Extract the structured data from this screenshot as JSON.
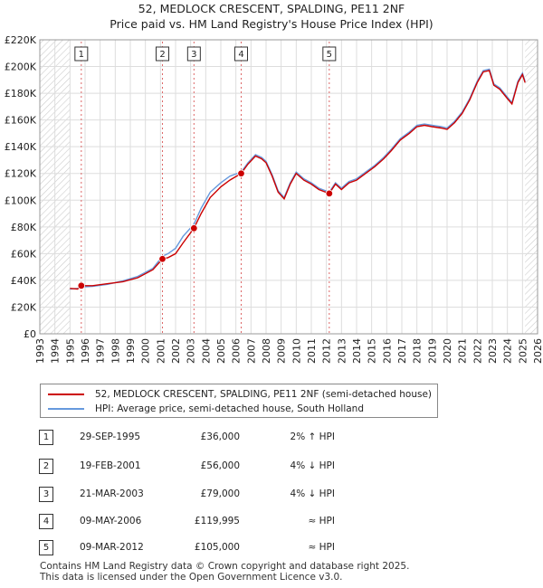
{
  "title_line1": "52, MEDLOCK CRESCENT, SPALDING, PE11 2NF",
  "title_line2": "Price paid vs. HM Land Registry's House Price Index (HPI)",
  "colors": {
    "property": "#cc0000",
    "hpi": "#6699dd",
    "marker_line": "#dd6666",
    "hatch": "#cccccc"
  },
  "legend": {
    "property_label": "52, MEDLOCK CRESCENT, SPALDING, PE11 2NF (semi-detached house)",
    "hpi_label": "HPI: Average price, semi-detached house, South Holland"
  },
  "sales": [
    {
      "num": "1",
      "date": "29-SEP-1995",
      "price": "£36,000",
      "hpi": "2% ↑ HPI"
    },
    {
      "num": "2",
      "date": "19-FEB-2001",
      "price": "£56,000",
      "hpi": "4% ↓ HPI"
    },
    {
      "num": "3",
      "date": "21-MAR-2003",
      "price": "£79,000",
      "hpi": "4% ↓ HPI"
    },
    {
      "num": "4",
      "date": "09-MAY-2006",
      "price": "£119,995",
      "hpi": "≈ HPI"
    },
    {
      "num": "5",
      "date": "09-MAR-2012",
      "price": "£105,000",
      "hpi": "≈ HPI"
    }
  ],
  "footer_line1": "Contains HM Land Registry data © Crown copyright and database right 2025.",
  "footer_line2": "This data is licensed under the Open Government Licence v3.0.",
  "chart_data": {
    "type": "line",
    "title": "52, MEDLOCK CRESCENT, SPALDING, PE11 2NF",
    "subtitle": "Price paid vs. HM Land Registry's House Price Index (HPI)",
    "xlim": [
      1993,
      2026
    ],
    "ylim": [
      0,
      220000
    ],
    "x_ticks": [
      1993,
      1994,
      1995,
      1996,
      1997,
      1998,
      1999,
      2000,
      2001,
      2002,
      2003,
      2004,
      2005,
      2006,
      2007,
      2008,
      2009,
      2010,
      2011,
      2012,
      2013,
      2014,
      2015,
      2016,
      2017,
      2018,
      2019,
      2020,
      2021,
      2022,
      2023,
      2024,
      2025,
      2026
    ],
    "y_ticks": [
      {
        "value": 0,
        "label": "£0"
      },
      {
        "value": 20000,
        "label": "£20K"
      },
      {
        "value": 40000,
        "label": "£40K"
      },
      {
        "value": 60000,
        "label": "£60K"
      },
      {
        "value": 80000,
        "label": "£80K"
      },
      {
        "value": 100000,
        "label": "£100K"
      },
      {
        "value": 120000,
        "label": "£120K"
      },
      {
        "value": 140000,
        "label": "£140K"
      },
      {
        "value": 160000,
        "label": "£160K"
      },
      {
        "value": 180000,
        "label": "£180K"
      },
      {
        "value": 200000,
        "label": "£200K"
      },
      {
        "value": 220000,
        "label": "£220K"
      }
    ],
    "grid": true,
    "data_start": 1995.0,
    "data_end": 2025.17,
    "sale_markers": [
      {
        "label": "1",
        "x": 1995.75,
        "y": 36000
      },
      {
        "label": "2",
        "x": 2001.13,
        "y": 56000
      },
      {
        "label": "3",
        "x": 2003.22,
        "y": 79000
      },
      {
        "label": "4",
        "x": 2006.35,
        "y": 119995
      },
      {
        "label": "5",
        "x": 2012.19,
        "y": 105000
      }
    ],
    "series": [
      {
        "name": "52, MEDLOCK CRESCENT, SPALDING, PE11 2NF (semi-detached house)",
        "points": [
          [
            1995.0,
            34000
          ],
          [
            1995.5,
            33500
          ],
          [
            1995.75,
            36000
          ],
          [
            1996.5,
            36000
          ],
          [
            1997.5,
            37500
          ],
          [
            1998.5,
            39000
          ],
          [
            1999.5,
            42000
          ],
          [
            2000.5,
            48000
          ],
          [
            2001.13,
            56000
          ],
          [
            2001.5,
            57000
          ],
          [
            2002.0,
            60000
          ],
          [
            2002.5,
            68000
          ],
          [
            2003.22,
            79000
          ],
          [
            2003.7,
            90000
          ],
          [
            2004.3,
            102000
          ],
          [
            2005.0,
            110000
          ],
          [
            2005.6,
            115000
          ],
          [
            2006.35,
            119995
          ],
          [
            2006.8,
            127000
          ],
          [
            2007.3,
            133000
          ],
          [
            2007.7,
            131000
          ],
          [
            2008.0,
            128000
          ],
          [
            2008.4,
            118000
          ],
          [
            2008.8,
            106000
          ],
          [
            2009.2,
            101000
          ],
          [
            2009.6,
            112000
          ],
          [
            2010.0,
            120000
          ],
          [
            2010.5,
            115000
          ],
          [
            2011.0,
            112000
          ],
          [
            2011.5,
            108000
          ],
          [
            2012.19,
            105000
          ],
          [
            2012.6,
            112000
          ],
          [
            2013.0,
            108000
          ],
          [
            2013.5,
            113000
          ],
          [
            2014.0,
            115000
          ],
          [
            2014.6,
            120000
          ],
          [
            2015.2,
            125000
          ],
          [
            2015.8,
            131000
          ],
          [
            2016.3,
            137000
          ],
          [
            2016.9,
            145000
          ],
          [
            2017.5,
            150000
          ],
          [
            2018.0,
            155000
          ],
          [
            2018.5,
            156000
          ],
          [
            2019.0,
            155000
          ],
          [
            2019.6,
            154000
          ],
          [
            2020.0,
            153000
          ],
          [
            2020.5,
            158000
          ],
          [
            2021.0,
            165000
          ],
          [
            2021.5,
            175000
          ],
          [
            2022.0,
            188000
          ],
          [
            2022.4,
            196000
          ],
          [
            2022.8,
            197000
          ],
          [
            2023.1,
            186000
          ],
          [
            2023.5,
            183000
          ],
          [
            2024.0,
            176000
          ],
          [
            2024.3,
            172000
          ],
          [
            2024.7,
            188000
          ],
          [
            2025.0,
            194000
          ],
          [
            2025.17,
            188000
          ]
        ]
      },
      {
        "name": "HPI: Average price, semi-detached house, South Holland",
        "points": [
          [
            1995.0,
            33500
          ],
          [
            1995.5,
            34000
          ],
          [
            1995.75,
            35000
          ],
          [
            1996.5,
            35500
          ],
          [
            1997.5,
            37000
          ],
          [
            1998.5,
            39500
          ],
          [
            1999.5,
            43000
          ],
          [
            2000.5,
            49000
          ],
          [
            2001.13,
            58000
          ],
          [
            2001.5,
            60000
          ],
          [
            2002.0,
            64000
          ],
          [
            2002.5,
            73000
          ],
          [
            2003.22,
            82000
          ],
          [
            2003.7,
            94000
          ],
          [
            2004.3,
            106000
          ],
          [
            2005.0,
            113000
          ],
          [
            2005.6,
            118000
          ],
          [
            2006.35,
            121000
          ],
          [
            2006.8,
            128000
          ],
          [
            2007.3,
            134000
          ],
          [
            2007.7,
            132000
          ],
          [
            2008.0,
            129000
          ],
          [
            2008.4,
            119000
          ],
          [
            2008.8,
            107000
          ],
          [
            2009.2,
            102000
          ],
          [
            2009.6,
            113000
          ],
          [
            2010.0,
            121000
          ],
          [
            2010.5,
            116000
          ],
          [
            2011.0,
            113000
          ],
          [
            2011.5,
            109000
          ],
          [
            2012.19,
            106000
          ],
          [
            2012.6,
            113000
          ],
          [
            2013.0,
            109000
          ],
          [
            2013.5,
            114000
          ],
          [
            2014.0,
            116000
          ],
          [
            2014.6,
            121000
          ],
          [
            2015.2,
            126000
          ],
          [
            2015.8,
            132000
          ],
          [
            2016.3,
            138000
          ],
          [
            2016.9,
            146000
          ],
          [
            2017.5,
            151000
          ],
          [
            2018.0,
            156000
          ],
          [
            2018.5,
            157000
          ],
          [
            2019.0,
            156000
          ],
          [
            2019.6,
            155000
          ],
          [
            2020.0,
            154000
          ],
          [
            2020.5,
            159000
          ],
          [
            2021.0,
            166000
          ],
          [
            2021.5,
            176000
          ],
          [
            2022.0,
            189000
          ],
          [
            2022.4,
            197000
          ],
          [
            2022.8,
            198000
          ],
          [
            2023.1,
            187000
          ],
          [
            2023.5,
            184000
          ],
          [
            2024.0,
            177000
          ],
          [
            2024.3,
            173000
          ],
          [
            2024.7,
            189000
          ],
          [
            2025.0,
            195000
          ],
          [
            2025.17,
            189000
          ]
        ]
      }
    ]
  }
}
